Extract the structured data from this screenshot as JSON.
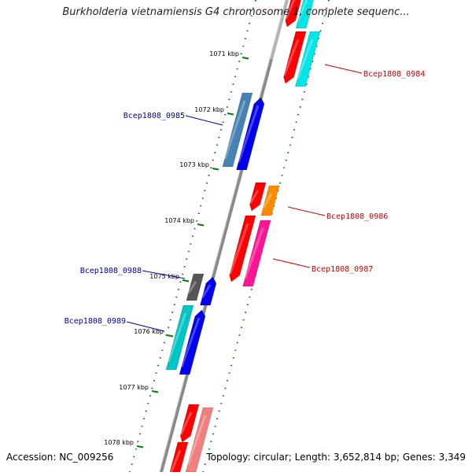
{
  "title": "Burkholderia vietnamiensis G4 chromosome 1, complete sequenc...",
  "accession": "Accession: NC_009256",
  "topology": "Topology: circular; Length: 3,652,814 bp; Genes: 3,349",
  "ticks": [
    "1071 kbp",
    "1072 kbp",
    "1073 kbp",
    "1074 kbp",
    "1075 kbp",
    "1076 kbp",
    "1077 kbp",
    "1078 kbp"
  ],
  "gene_labels": {
    "right": [
      "Bcep1808_0984",
      "Bcep1808_0986",
      "Bcep1808_0987"
    ],
    "left": [
      "Bcep1808_0985",
      "Bcep1808_0988",
      "Bcep1808_0989"
    ]
  },
  "colors": {
    "backbone": "#808080",
    "tick": "#008000",
    "label_right": "#cc0000",
    "label_left": "#0000aa",
    "red": "#ff0000",
    "cyan": "#00e5e5",
    "blue": "#0000ee",
    "steelblue": "#4682b4",
    "orange": "#ff8c00",
    "pink": "#ff1493",
    "gray": "#555555",
    "teal": "#00c5c5",
    "lightred": "#f08080"
  }
}
